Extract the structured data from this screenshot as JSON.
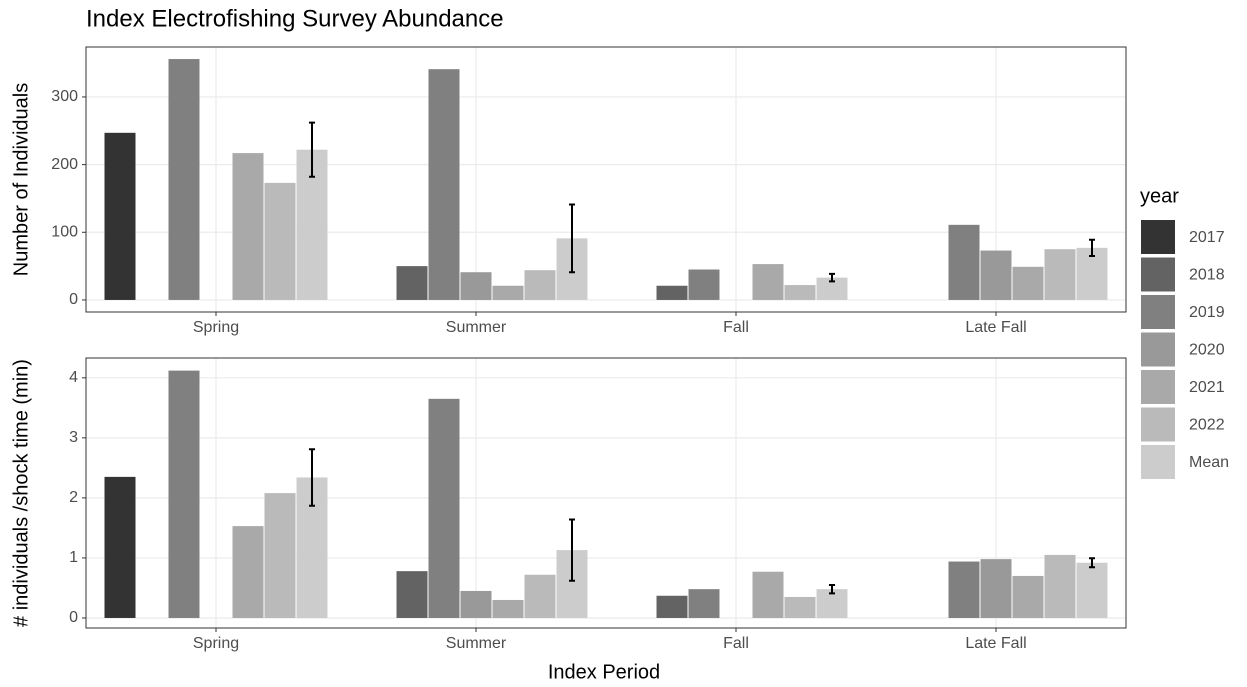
{
  "chart_data": [
    {
      "type": "bar",
      "title": "Index Electrofishing Survey Abundance",
      "ylabel": "Number of Individuals",
      "legend_title": "year",
      "categories": [
        "Spring",
        "Summer",
        "Fall",
        "Late Fall"
      ],
      "series": [
        {
          "name": "2017",
          "color": "#333333",
          "values": [
            247,
            null,
            null,
            null
          ]
        },
        {
          "name": "2018",
          "color": "#636363",
          "values": [
            null,
            50,
            21,
            null
          ]
        },
        {
          "name": "2019",
          "color": "#808080",
          "values": [
            356,
            341,
            45,
            111
          ]
        },
        {
          "name": "2020",
          "color": "#999999",
          "values": [
            null,
            41,
            null,
            73
          ]
        },
        {
          "name": "2021",
          "color": "#a9a9a9",
          "values": [
            217,
            21,
            53,
            49
          ]
        },
        {
          "name": "2022",
          "color": "#bababa",
          "values": [
            173,
            44,
            22,
            75
          ]
        },
        {
          "name": "Mean",
          "color": "#cccccc",
          "values": [
            222,
            91,
            33,
            77
          ],
          "errors": [
            40,
            50,
            5.5,
            12
          ]
        }
      ],
      "ylim": [
        -17.8,
        373.8
      ],
      "yticks": [
        0,
        100,
        200,
        300
      ],
      "grid": true
    },
    {
      "type": "bar",
      "ylabel": "# individuals /shock time (min)",
      "xlabel": "Index Period",
      "categories": [
        "Spring",
        "Summer",
        "Fall",
        "Late Fall"
      ],
      "series": [
        {
          "color": "#333333",
          "values": [
            2.35,
            null,
            null,
            null
          ]
        },
        {
          "color": "#636363",
          "values": [
            null,
            0.78,
            0.37,
            null
          ]
        },
        {
          "color": "#808080",
          "values": [
            4.12,
            3.65,
            0.48,
            0.94
          ]
        },
        {
          "color": "#999999",
          "values": [
            null,
            0.45,
            null,
            0.98
          ]
        },
        {
          "color": "#a9a9a9",
          "values": [
            1.53,
            0.3,
            0.77,
            0.7
          ]
        },
        {
          "color": "#bababa",
          "values": [
            2.08,
            0.72,
            0.35,
            1.05
          ]
        },
        {
          "color": "#cccccc",
          "values": [
            2.34,
            1.13,
            0.48,
            0.92
          ],
          "errors": [
            0.47,
            0.51,
            0.07,
            0.075
          ]
        }
      ],
      "ylim": [
        -0.167,
        4.33
      ],
      "yticks": [
        0,
        1,
        2,
        3,
        4
      ],
      "grid": true
    }
  ]
}
